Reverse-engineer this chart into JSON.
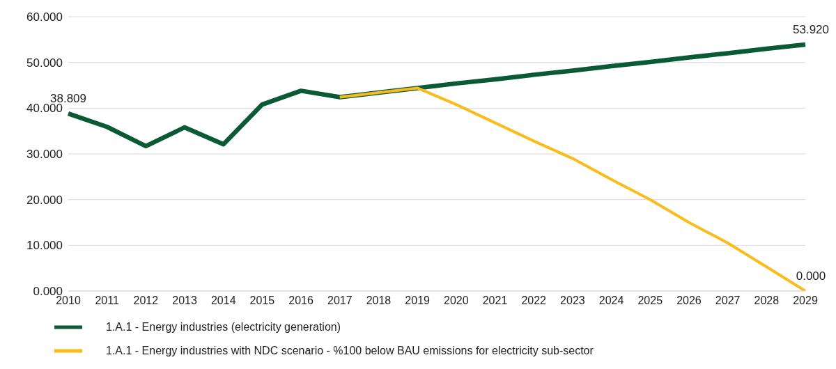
{
  "chart_data": {
    "type": "line",
    "categories": [
      "2010",
      "2011",
      "2012",
      "2013",
      "2014",
      "2015",
      "2016",
      "2017",
      "2018",
      "2019",
      "2020",
      "2021",
      "2022",
      "2023",
      "2024",
      "2025",
      "2026",
      "2027",
      "2028",
      "2029"
    ],
    "series": [
      {
        "name": "1.A.1 - Energy industries (electricity generation)",
        "color": "#0b5a36",
        "values": [
          38.809,
          35.9,
          31.7,
          35.8,
          32.1,
          40.8,
          43.8,
          42.4,
          43.4,
          44.4,
          45.4,
          46.3,
          47.3,
          48.2,
          49.2,
          50.1,
          51.1,
          52.0,
          53.0,
          53.92
        ],
        "value_labels": [
          "38.809",
          null,
          null,
          null,
          null,
          null,
          null,
          null,
          null,
          null,
          null,
          null,
          null,
          null,
          null,
          null,
          null,
          null,
          null,
          "53.920"
        ]
      },
      {
        "name": "1.A.1 - Energy industries with NDC scenario - %100 below BAU emissions for electricity sub-sector",
        "color": "#f9bc1c",
        "values": [
          null,
          null,
          null,
          null,
          null,
          null,
          null,
          42.4,
          43.4,
          44.4,
          40.8,
          36.8,
          32.8,
          29.0,
          24.4,
          20.0,
          15.0,
          10.5,
          5.3,
          0
        ],
        "value_labels": [
          null,
          null,
          null,
          null,
          null,
          null,
          null,
          null,
          null,
          null,
          null,
          null,
          null,
          null,
          null,
          null,
          null,
          null,
          null,
          "0.000"
        ]
      }
    ],
    "ylim": [
      0,
      60
    ],
    "yticks": [
      {
        "value": 0,
        "label": "0.000"
      },
      {
        "value": 10,
        "label": "10.000"
      },
      {
        "value": 20,
        "label": "20.000"
      },
      {
        "value": 30,
        "label": "30.000"
      },
      {
        "value": 40,
        "label": "40.000"
      },
      {
        "value": 50,
        "label": "50.000"
      },
      {
        "value": 60,
        "label": "60.000"
      }
    ],
    "grid": "y",
    "legend": "bottom left",
    "marker": "none",
    "line_style": "solid"
  }
}
